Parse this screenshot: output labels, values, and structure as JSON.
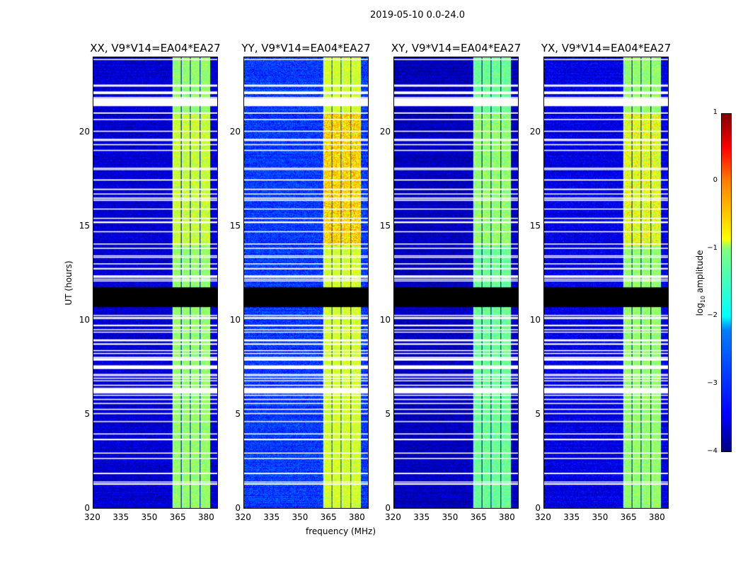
{
  "chart_data": {
    "type": "heatmap",
    "title": "2019-05-10 0.0-24.0",
    "xlabel": "frequency (MHz)",
    "ylabel": "UT (hours)",
    "xlim": [
      320,
      386
    ],
    "ylim": [
      0,
      24
    ],
    "xticks": [
      "320",
      "335",
      "350",
      "365",
      "380"
    ],
    "yticks": [
      "0",
      "5",
      "10",
      "15",
      "20"
    ],
    "colorbar": {
      "label": "log10 amplitude",
      "range": [
        -4,
        1
      ],
      "ticks": [
        "1",
        "0",
        "−1",
        "−2",
        "−3",
        "−4"
      ],
      "colormap": "jet"
    },
    "bright_band_MHz": [
      [
        361.8,
        366.4
      ],
      [
        366.8,
        371.3
      ],
      [
        371.7,
        376.5
      ],
      [
        377.0,
        382.0
      ]
    ],
    "flagged_black_hours": [
      10.7,
      11.75
    ],
    "flagged_white_hours": [
      [
        21.4,
        21.8
      ],
      [
        7.4,
        7.6
      ],
      [
        6.1,
        6.4
      ]
    ],
    "panels": [
      {
        "title": "XX, V9*V14=EA04*EA27",
        "background_level": -3.6,
        "band_level": -1.4,
        "band_peak": -0.9
      },
      {
        "title": "YY, V9*V14=EA04*EA27",
        "background_level": -3.1,
        "band_level": -1.1,
        "band_peak": -0.3
      },
      {
        "title": "XY, V9*V14=EA04*EA27",
        "background_level": -3.7,
        "band_level": -1.6,
        "band_peak": -1.2
      },
      {
        "title": "YX, V9*V14=EA04*EA27",
        "background_level": -3.5,
        "band_level": -1.4,
        "band_peak": -0.6
      }
    ]
  }
}
